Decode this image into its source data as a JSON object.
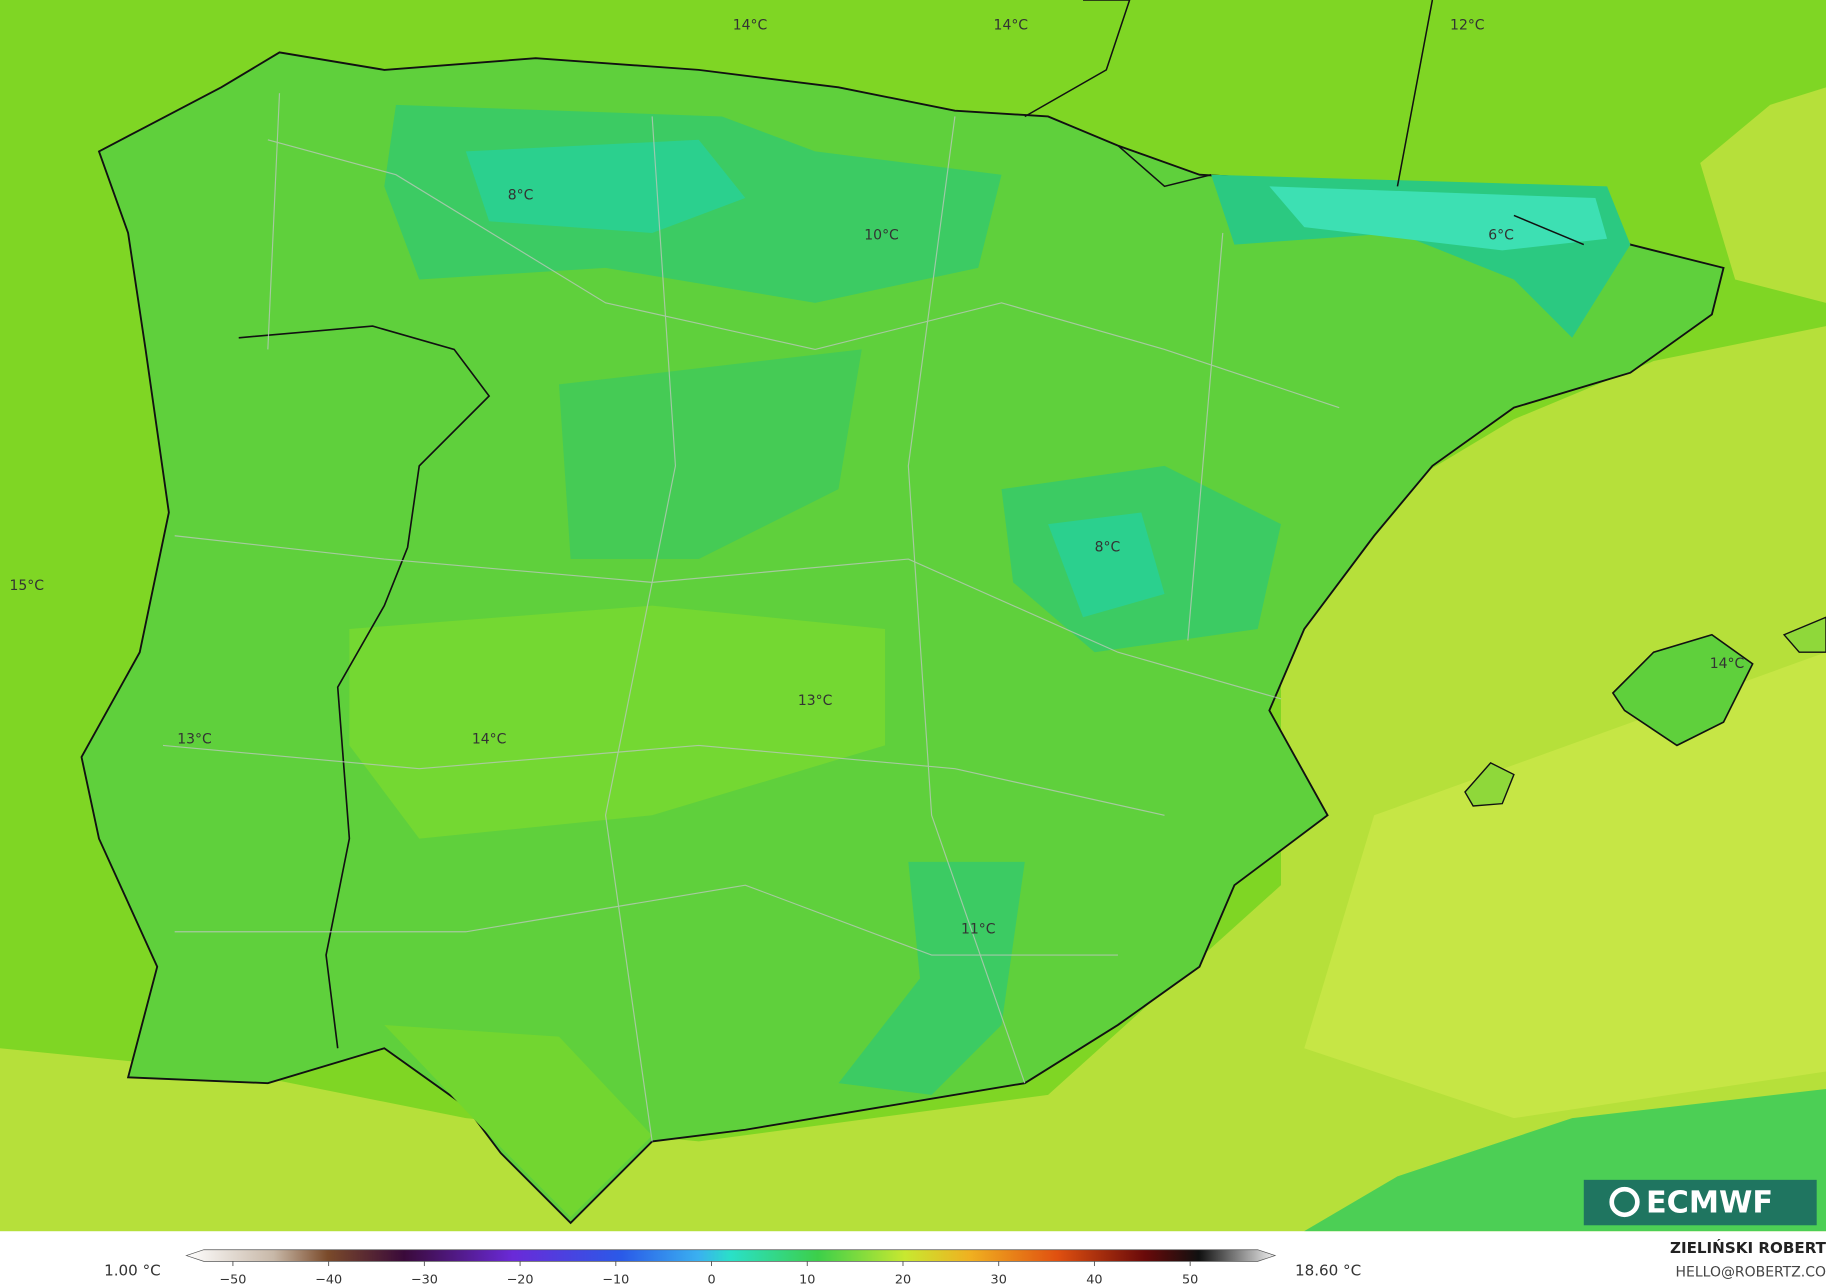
{
  "labels": [
    "14°C",
    "14°C",
    "12°C",
    "8°C",
    "10°C",
    "6°C",
    "15°C",
    "8°C",
    "14°C",
    "13°C",
    "13°C",
    "14°C",
    "11°C"
  ],
  "colorbar": {
    "min_label": "1.00 °C",
    "max_label": "18.60 °C",
    "ticks": [
      {
        "value": -50,
        "label": "−50"
      },
      {
        "value": -40,
        "label": "−40"
      },
      {
        "value": -30,
        "label": "−30"
      },
      {
        "value": -20,
        "label": "−20"
      },
      {
        "value": -10,
        "label": "−10"
      },
      0,
      10,
      20,
      30,
      40,
      50
    ]
  },
  "credit": {
    "name": "ZIELIŃSKI ROBERT",
    "email": "HELLO@ROBERTZ.CO"
  },
  "logo": "ECMWF"
}
